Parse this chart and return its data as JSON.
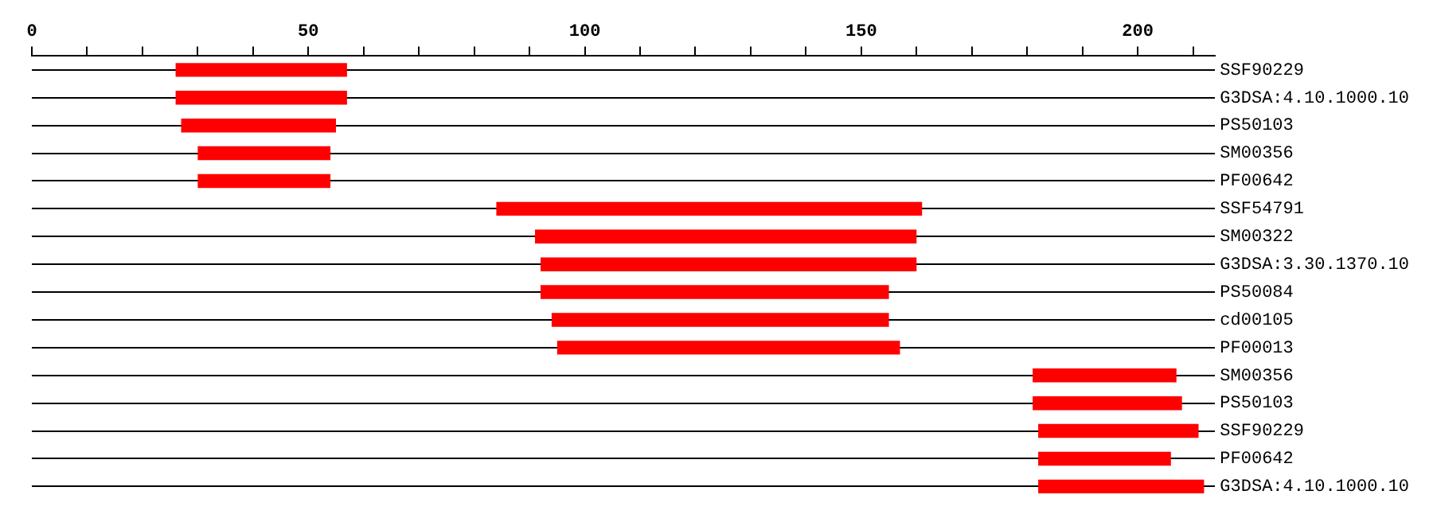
{
  "chart_data": {
    "type": "bar",
    "orientation": "horizontal",
    "color": "#ff0000",
    "categories": [
      "SSF90229",
      "G3DSA:4.10.1000.10",
      "PS50103",
      "SM00356",
      "PF00642",
      "SSF54791",
      "SM00322",
      "G3DSA:3.30.1370.10",
      "PS50084",
      "cd00105",
      "PF00013",
      "SM00356",
      "PS50103",
      "SSF90229",
      "PF00642",
      "G3DSA:4.10.1000.10"
    ],
    "base": [
      26,
      26,
      27,
      30,
      30,
      84,
      91,
      92,
      92,
      94,
      95,
      181,
      181,
      182,
      182,
      182
    ],
    "values": [
      31,
      31,
      28,
      24,
      24,
      77,
      69,
      68,
      63,
      61,
      62,
      26,
      27,
      29,
      24,
      30
    ],
    "xlim": [
      0,
      214
    ],
    "xticks": [
      0,
      {
        "value": 10,
        "label": null
      },
      {
        "value": 20,
        "label": null
      },
      {
        "value": 30,
        "label": null
      },
      {
        "value": 40,
        "label": null
      },
      50,
      {
        "value": 60,
        "label": null
      },
      {
        "value": 70,
        "label": null
      },
      {
        "value": 80,
        "label": null
      },
      {
        "value": 90,
        "label": null
      },
      100,
      {
        "value": 110,
        "label": null
      },
      {
        "value": 120,
        "label": null
      },
      {
        "value": 130,
        "label": null
      },
      {
        "value": 140,
        "label": null
      },
      150,
      {
        "value": 160,
        "label": null
      },
      {
        "value": 170,
        "label": null
      },
      {
        "value": 180,
        "label": null
      },
      {
        "value": 190,
        "label": null
      },
      200,
      {
        "value": 210,
        "label": null
      }
    ],
    "grid": "y"
  }
}
